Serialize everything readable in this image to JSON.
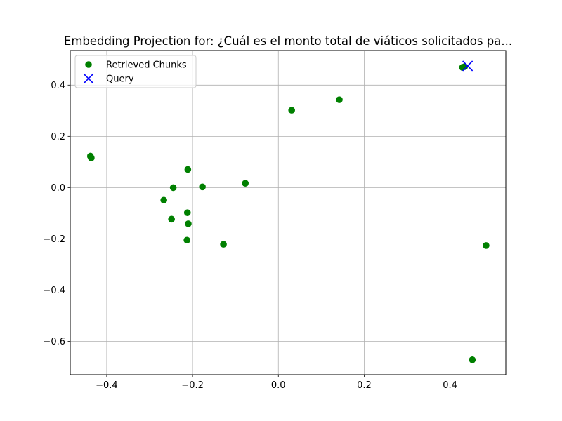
{
  "chart_data": {
    "type": "scatter",
    "title": "Embedding Projection for: ¿Cuál es el monto total de viáticos solicitados pa...",
    "xlabel": "",
    "ylabel": "",
    "xlim": [
      -0.485,
      0.53
    ],
    "ylim": [
      -0.73,
      0.535
    ],
    "grid": true,
    "legend_position": "top-left",
    "x_ticks": [
      -0.4,
      -0.2,
      0.0,
      0.2,
      0.4
    ],
    "x_tick_labels": [
      "−0.4",
      "−0.2",
      "0.0",
      "0.2",
      "0.4"
    ],
    "y_ticks": [
      -0.6,
      -0.4,
      -0.2,
      0.0,
      0.2,
      0.4
    ],
    "y_tick_labels": [
      "−0.6",
      "−0.4",
      "−0.2",
      "0.0",
      "0.2",
      "0.4"
    ],
    "series": [
      {
        "name": "Retrieved Chunks",
        "marker": "circle",
        "color": "#008000",
        "points": [
          {
            "x": -0.438,
            "y": 0.123
          },
          {
            "x": -0.436,
            "y": 0.116
          },
          {
            "x": -0.211,
            "y": 0.071
          },
          {
            "x": -0.245,
            "y": 0.0
          },
          {
            "x": -0.177,
            "y": 0.003
          },
          {
            "x": -0.077,
            "y": 0.017
          },
          {
            "x": -0.267,
            "y": -0.049
          },
          {
            "x": -0.249,
            "y": -0.123
          },
          {
            "x": -0.212,
            "y": -0.098
          },
          {
            "x": -0.21,
            "y": -0.141
          },
          {
            "x": -0.213,
            "y": -0.205
          },
          {
            "x": -0.128,
            "y": -0.221
          },
          {
            "x": 0.031,
            "y": 0.302
          },
          {
            "x": 0.142,
            "y": 0.343
          },
          {
            "x": 0.429,
            "y": 0.469
          },
          {
            "x": 0.434,
            "y": 0.472
          },
          {
            "x": 0.484,
            "y": -0.226
          },
          {
            "x": 0.452,
            "y": -0.672
          }
        ]
      },
      {
        "name": "Query",
        "marker": "x",
        "color": "#0000ff",
        "points": [
          {
            "x": 0.441,
            "y": 0.475
          }
        ]
      }
    ]
  }
}
